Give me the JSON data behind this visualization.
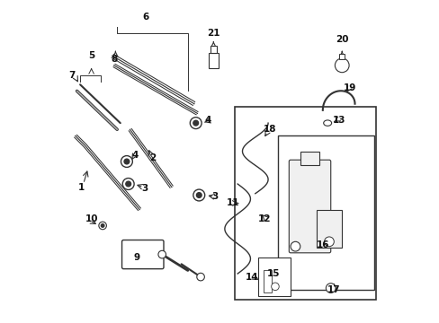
{
  "bg_color": "#ffffff",
  "line_color": "#333333",
  "label_color": "#111111",
  "fig_width": 4.89,
  "fig_height": 3.6,
  "dpi": 100
}
